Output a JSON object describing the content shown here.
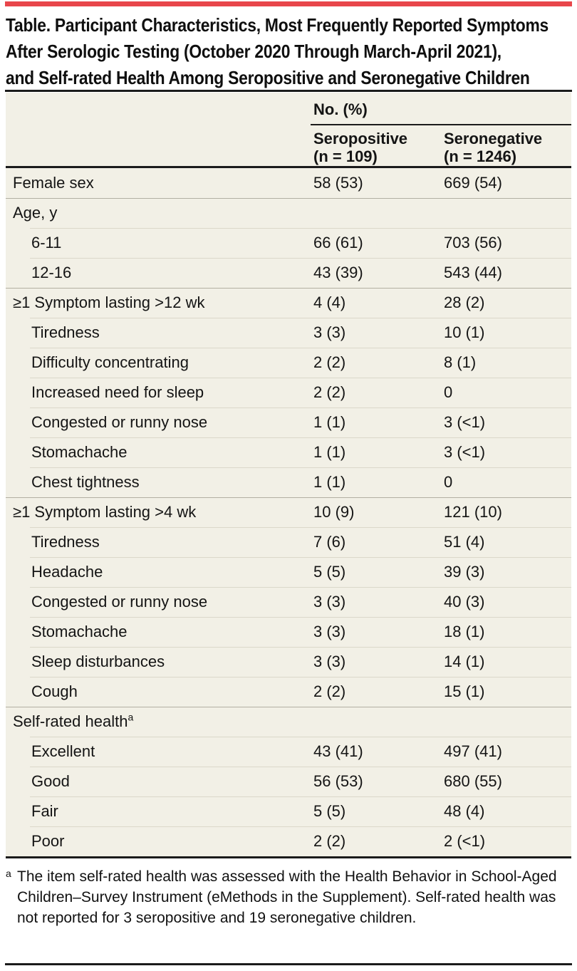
{
  "colors": {
    "accent_red": "#e8464b",
    "table_background": "#f2f0e6",
    "rule_black": "#1b1b1b"
  },
  "title_lines": [
    "Table. Participant Characteristics, Most Frequently Reported Symptoms",
    "After Serologic Testing (October 2020 Through March-April 2021),",
    "and Self-rated Health Among Seropositive and Seronegative Children"
  ],
  "title_full": "Table. Participant Characteristics, Most Frequently Reported Symptoms After Serologic Testing (October 2020 Through March-April 2021), and Self-rated Health Among Seropositive and Seronegative Children",
  "table": {
    "spanner": "No. (%)",
    "columns": [
      {
        "line1": "Seropositive",
        "line2": "(n = 109)"
      },
      {
        "line1": "Seronegative",
        "line2": "(n = 1246)"
      }
    ],
    "rows": [
      {
        "label": "Female sex",
        "indent": 0,
        "seropositive": "58 (53)",
        "seronegative": "669 (54)"
      },
      {
        "label": "Age, y",
        "indent": 0,
        "seropositive": "",
        "seronegative": ""
      },
      {
        "label": "6-11",
        "indent": 1,
        "seropositive": "66 (61)",
        "seronegative": "703 (56)"
      },
      {
        "label": "12-16",
        "indent": 1,
        "seropositive": "43 (39)",
        "seronegative": "543 (44)"
      },
      {
        "label": "≥1 Symptom lasting >12 wk",
        "indent": 0,
        "seropositive": "4 (4)",
        "seronegative": "28 (2)"
      },
      {
        "label": "Tiredness",
        "indent": 1,
        "seropositive": "3 (3)",
        "seronegative": "10 (1)"
      },
      {
        "label": "Difficulty concentrating",
        "indent": 1,
        "seropositive": "2 (2)",
        "seronegative": "8 (1)"
      },
      {
        "label": "Increased need for sleep",
        "indent": 1,
        "seropositive": "2 (2)",
        "seronegative": "0"
      },
      {
        "label": "Congested or runny nose",
        "indent": 1,
        "seropositive": "1 (1)",
        "seronegative": "3 (<1)"
      },
      {
        "label": "Stomachache",
        "indent": 1,
        "seropositive": "1 (1)",
        "seronegative": "3 (<1)"
      },
      {
        "label": "Chest tightness",
        "indent": 1,
        "seropositive": "1 (1)",
        "seronegative": "0"
      },
      {
        "label": "≥1 Symptom lasting >4 wk",
        "indent": 0,
        "seropositive": "10 (9)",
        "seronegative": "121 (10)"
      },
      {
        "label": "Tiredness",
        "indent": 1,
        "seropositive": "7 (6)",
        "seronegative": "51 (4)"
      },
      {
        "label": "Headache",
        "indent": 1,
        "seropositive": "5 (5)",
        "seronegative": "39 (3)"
      },
      {
        "label": "Congested or runny nose",
        "indent": 1,
        "seropositive": "3 (3)",
        "seronegative": "40 (3)"
      },
      {
        "label": "Stomachache",
        "indent": 1,
        "seropositive": "3 (3)",
        "seronegative": "18 (1)"
      },
      {
        "label": "Sleep disturbances",
        "indent": 1,
        "seropositive": "3 (3)",
        "seronegative": "14 (1)"
      },
      {
        "label": "Cough",
        "indent": 1,
        "seropositive": "2 (2)",
        "seronegative": "15 (1)"
      },
      {
        "label": "Self-rated health",
        "sup": "a",
        "indent": 0,
        "seropositive": "",
        "seronegative": ""
      },
      {
        "label": "Excellent",
        "indent": 1,
        "seropositive": "43 (41)",
        "seronegative": "497 (41)"
      },
      {
        "label": "Good",
        "indent": 1,
        "seropositive": "56 (53)",
        "seronegative": "680 (55)"
      },
      {
        "label": "Fair",
        "indent": 1,
        "seropositive": "5 (5)",
        "seronegative": "48 (4)"
      },
      {
        "label": "Poor",
        "indent": 1,
        "seropositive": "2 (2)",
        "seronegative": "2 (<1)"
      }
    ]
  },
  "footnote": {
    "marker": "a",
    "text": "The item self-rated health was assessed with the Health Behavior in School-Aged Children–Survey Instrument (eMethods in the Supplement). Self-rated health was not reported for 3 seropositive and 19 seronegative children."
  }
}
